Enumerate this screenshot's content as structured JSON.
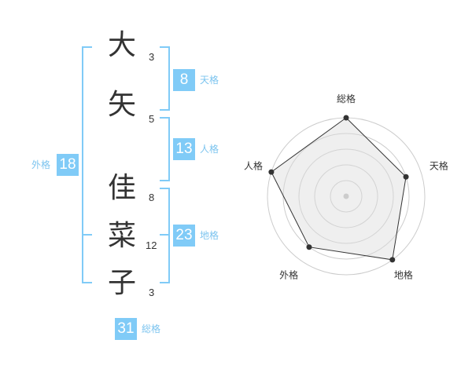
{
  "name": {
    "characters": [
      {
        "char": "大",
        "strokes": "3"
      },
      {
        "char": "矢",
        "strokes": "5"
      },
      {
        "char": "佳",
        "strokes": "8"
      },
      {
        "char": "菜",
        "strokes": "12"
      },
      {
        "char": "子",
        "strokes": "3"
      }
    ]
  },
  "fortunes": {
    "tenkaku": {
      "label": "天格",
      "value": "8"
    },
    "jinkaku": {
      "label": "人格",
      "value": "13"
    },
    "chikaku": {
      "label": "地格",
      "value": "23"
    },
    "gaikaku": {
      "label": "外格",
      "value": "18"
    },
    "soukaku": {
      "label": "総格",
      "value": "31"
    }
  },
  "colors": {
    "accent": "#80cbf7",
    "label": "#7cc4ef",
    "text": "#333333"
  },
  "chart_data": {
    "type": "radar",
    "axes": [
      "総格",
      "天格",
      "地格",
      "外格",
      "人格"
    ],
    "values": [
      5,
      4,
      5,
      4,
      5
    ],
    "range": [
      0,
      5
    ],
    "rings": 5
  }
}
